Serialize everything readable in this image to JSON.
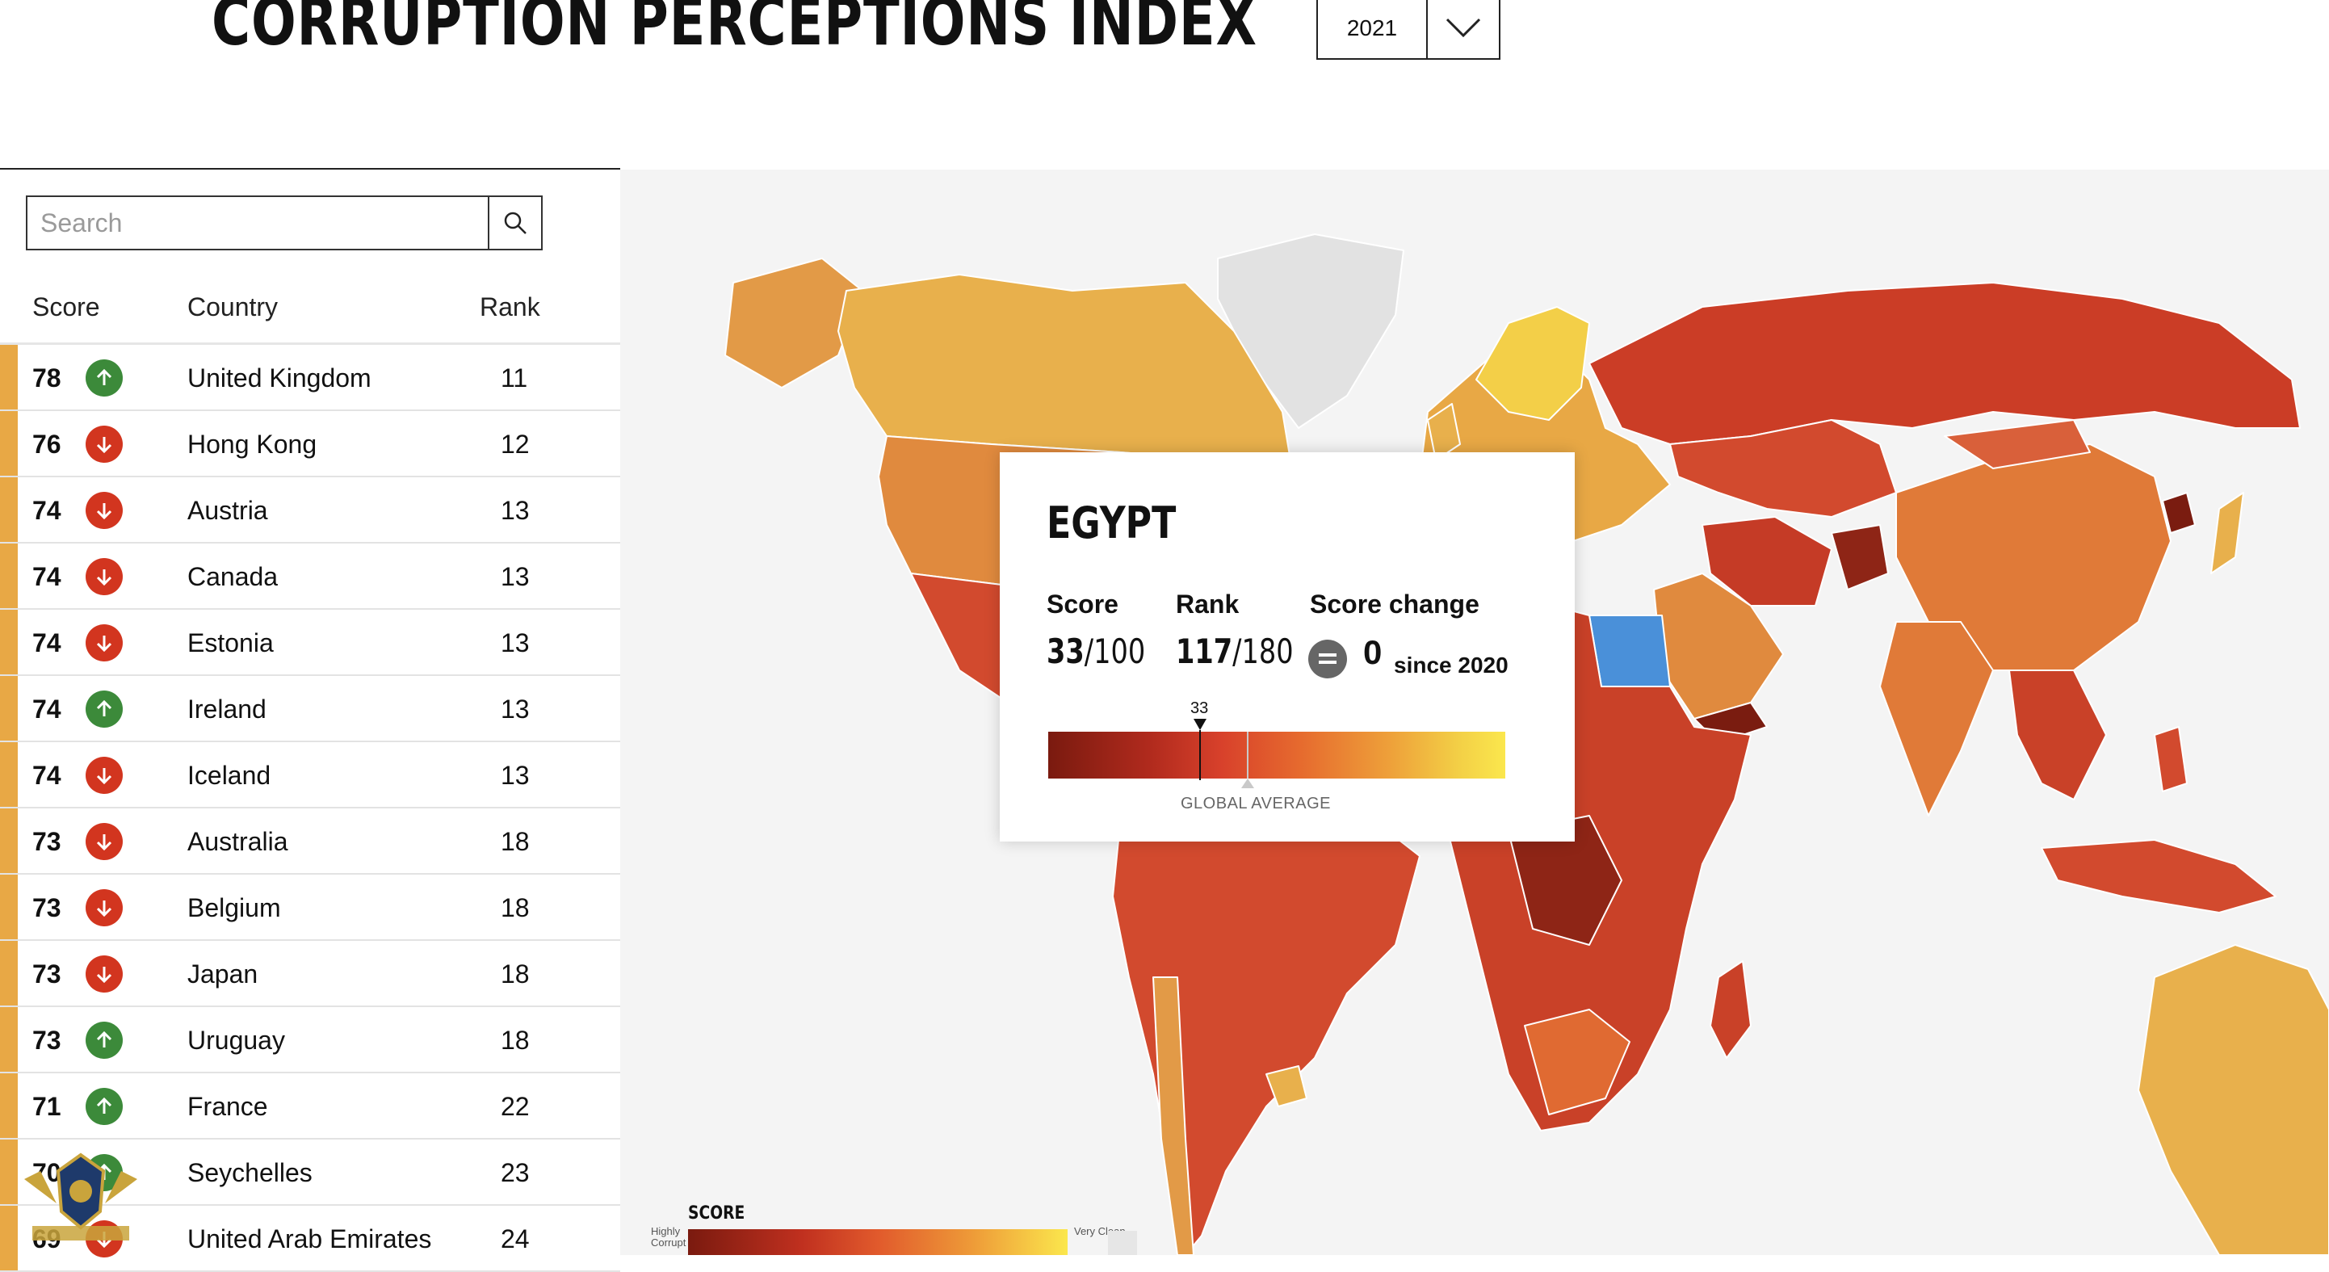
{
  "header": {
    "title": "CORRUPTION PERCEPTIONS INDEX",
    "year": "2021"
  },
  "search": {
    "placeholder": "Search"
  },
  "columns": {
    "score": "Score",
    "country": "Country",
    "rank": "Rank"
  },
  "rows": [
    {
      "score": "78",
      "change": "up",
      "country": "United Kingdom",
      "rank": "11"
    },
    {
      "score": "76",
      "change": "down",
      "country": "Hong Kong",
      "rank": "12"
    },
    {
      "score": "74",
      "change": "down",
      "country": "Austria",
      "rank": "13"
    },
    {
      "score": "74",
      "change": "down",
      "country": "Canada",
      "rank": "13"
    },
    {
      "score": "74",
      "change": "down",
      "country": "Estonia",
      "rank": "13"
    },
    {
      "score": "74",
      "change": "up",
      "country": "Ireland",
      "rank": "13"
    },
    {
      "score": "74",
      "change": "down",
      "country": "Iceland",
      "rank": "13"
    },
    {
      "score": "73",
      "change": "down",
      "country": "Australia",
      "rank": "18"
    },
    {
      "score": "73",
      "change": "down",
      "country": "Belgium",
      "rank": "18"
    },
    {
      "score": "73",
      "change": "down",
      "country": "Japan",
      "rank": "18"
    },
    {
      "score": "73",
      "change": "up",
      "country": "Uruguay",
      "rank": "18"
    },
    {
      "score": "71",
      "change": "up",
      "country": "France",
      "rank": "22"
    },
    {
      "score": "70",
      "change": "up",
      "country": "Seychelles",
      "rank": "23"
    },
    {
      "score": "69",
      "change": "down",
      "country": "United Arab Emirates",
      "rank": "24"
    }
  ],
  "tooltip": {
    "country": "EGYPT",
    "score_label": "Score",
    "score": "33",
    "score_max": "/100",
    "rank_label": "Rank",
    "rank": "117",
    "rank_max": "/180",
    "change_label": "Score change",
    "change_value": "0",
    "since": "since 2020",
    "marker_value": "33",
    "average_label": "GLOBAL AVERAGE"
  },
  "legend": {
    "title": "SCORE",
    "left_label": "Highly Corrupt",
    "right_label": "Very Clean"
  },
  "colors": {
    "highlight": "#4a90d9",
    "up": "#3c8a3a",
    "down": "#d2351f",
    "stripe": "#e8a845"
  }
}
